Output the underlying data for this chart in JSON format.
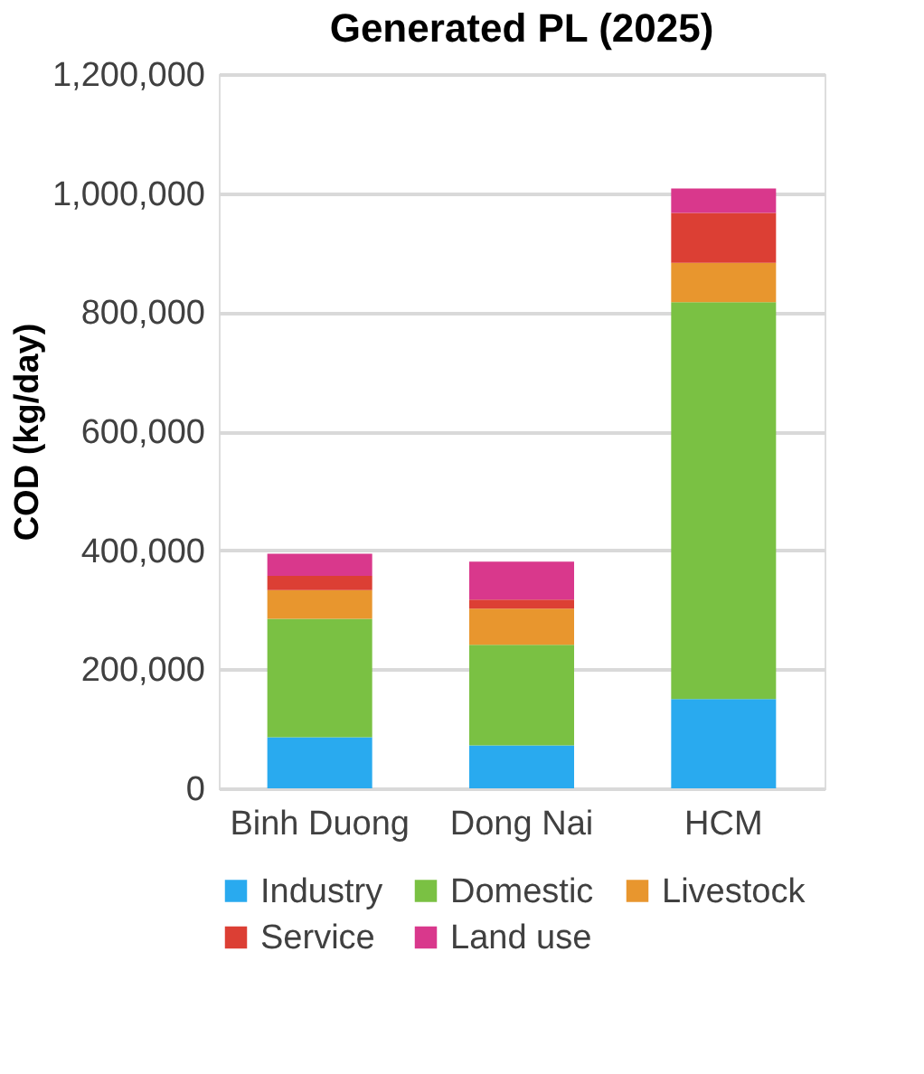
{
  "chart_data": {
    "type": "bar",
    "title": "Generated PL (2025)",
    "ylabel": "COD (kg/day)",
    "categories": [
      "Binh Duong",
      "Dong Nai",
      "HCM"
    ],
    "stacked": true,
    "series": [
      {
        "name": "Industry",
        "color": "#29aaef",
        "values": [
          86000,
          72000,
          150000
        ]
      },
      {
        "name": "Domestic",
        "color": "#7ac143",
        "values": [
          199000,
          169000,
          667000
        ]
      },
      {
        "name": "Livestock",
        "color": "#e8962e",
        "values": [
          48000,
          61000,
          66000
        ]
      },
      {
        "name": "Service",
        "color": "#dc3f34",
        "values": [
          24000,
          15000,
          84000
        ]
      },
      {
        "name": "Land use",
        "color": "#d9388c",
        "values": [
          37000,
          64000,
          41000
        ]
      }
    ],
    "ylim": [
      0,
      1200000
    ],
    "yticks": [
      0,
      {
        "value": 200000,
        "label": "200,000"
      },
      {
        "value": 400000,
        "label": "400,000"
      },
      {
        "value": 600000,
        "label": "600,000"
      },
      {
        "value": 800000,
        "label": "800,000"
      },
      {
        "value": 1000000,
        "label": "1,000,000"
      },
      {
        "value": 1200000,
        "label": "1,200,000"
      }
    ],
    "grid": "y",
    "legend": "bottom"
  }
}
